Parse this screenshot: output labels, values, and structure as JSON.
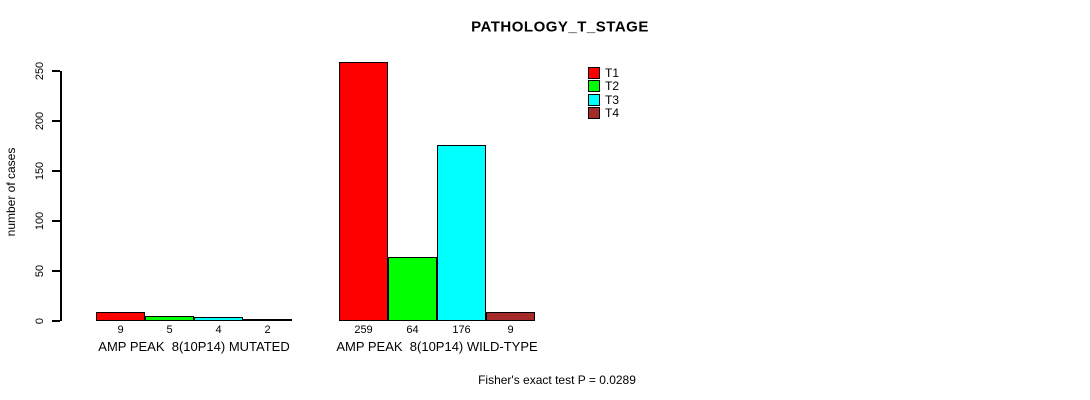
{
  "chart_data": {
    "type": "bar",
    "title": "PATHOLOGY_T_STAGE",
    "ylabel": "number of cases",
    "ylim": [
      0,
      250
    ],
    "yticks": [
      0,
      50,
      100,
      150,
      200,
      250
    ],
    "grid": false,
    "legend_position": "top-right",
    "categories": [
      "AMP PEAK  8(10P14) MUTATED",
      "AMP PEAK  8(10P14) WILD-TYPE"
    ],
    "series": [
      {
        "name": "T1",
        "color": "#FF0000",
        "values": [
          9,
          259
        ]
      },
      {
        "name": "T2",
        "color": "#00FF00",
        "values": [
          5,
          64
        ]
      },
      {
        "name": "T3",
        "color": "#00FFFF",
        "values": [
          4,
          176
        ]
      },
      {
        "name": "T4",
        "color": "#A52A2A",
        "values": [
          2,
          9
        ]
      }
    ],
    "bar_value_labels_shown": true,
    "annotation": "Fisher's exact test P = 0.0289"
  }
}
